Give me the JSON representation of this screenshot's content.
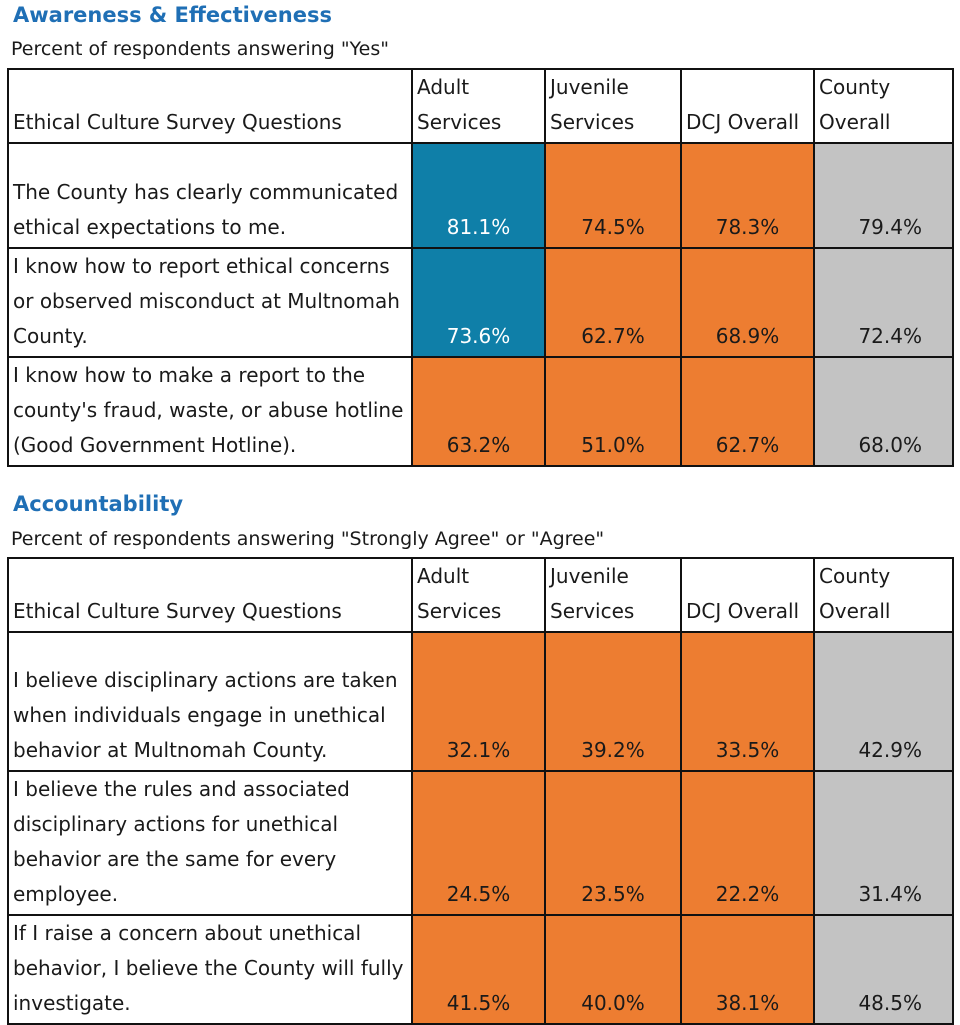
{
  "sections": [
    {
      "title": "Awareness & Effectiveness",
      "subtitle": "Percent of respondents answering \"Yes\"",
      "headers": {
        "question": "Ethical Culture Survey Questions",
        "adult": "Adult Services",
        "juvenile": "Juvenile Services",
        "dcj": "DCJ Overall",
        "county": "County Overall"
      },
      "rows": [
        {
          "question": "The County has clearly communicated ethical expectations to me.",
          "adult": "81.1%",
          "juvenile": "74.5%",
          "dcj": "78.3%",
          "county": "79.4%",
          "adult_color": "#0f7fa8"
        },
        {
          "question": "I know how to report ethical concerns or observed misconduct at Multnomah County.",
          "adult": "73.6%",
          "juvenile": "62.7%",
          "dcj": "68.9%",
          "county": "72.4%",
          "adult_color": "#0f7fa8"
        },
        {
          "question": "I know how to make a report to the county's fraud, waste, or abuse hotline (Good Government Hotline).",
          "adult": "63.2%",
          "juvenile": "51.0%",
          "dcj": "62.7%",
          "county": "68.0%",
          "adult_color": "#ed7d31"
        }
      ]
    },
    {
      "title": "Accountability",
      "subtitle": "Percent of respondents answering \"Strongly Agree\" or \"Agree\"",
      "headers": {
        "question": "Ethical Culture Survey Questions",
        "adult": "Adult Services",
        "juvenile": "Juvenile Services",
        "dcj": "DCJ Overall",
        "county": "County Overall"
      },
      "rows": [
        {
          "question": "I believe disciplinary actions are taken when individuals engage in unethical behavior at Multnomah County.",
          "adult": "32.1%",
          "juvenile": "39.2%",
          "dcj": "33.5%",
          "county": "42.9%",
          "adult_color": "#ed7d31"
        },
        {
          "question": "I believe the rules and associated disciplinary actions for unethical behavior are the same for every employee.",
          "adult": "24.5%",
          "juvenile": "23.5%",
          "dcj": "22.2%",
          "county": "31.4%",
          "adult_color": "#ed7d31"
        },
        {
          "question": "If I raise a concern about unethical behavior, I believe the County will fully investigate.",
          "adult": "41.5%",
          "juvenile": "40.0%",
          "dcj": "38.1%",
          "county": "48.5%",
          "adult_color": "#ed7d31"
        }
      ]
    }
  ],
  "colors": {
    "highlight_blue": "#0f7fa8",
    "orange": "#ed7d31",
    "gray": "#c3c3c3",
    "title_blue": "#1f6fb5"
  }
}
